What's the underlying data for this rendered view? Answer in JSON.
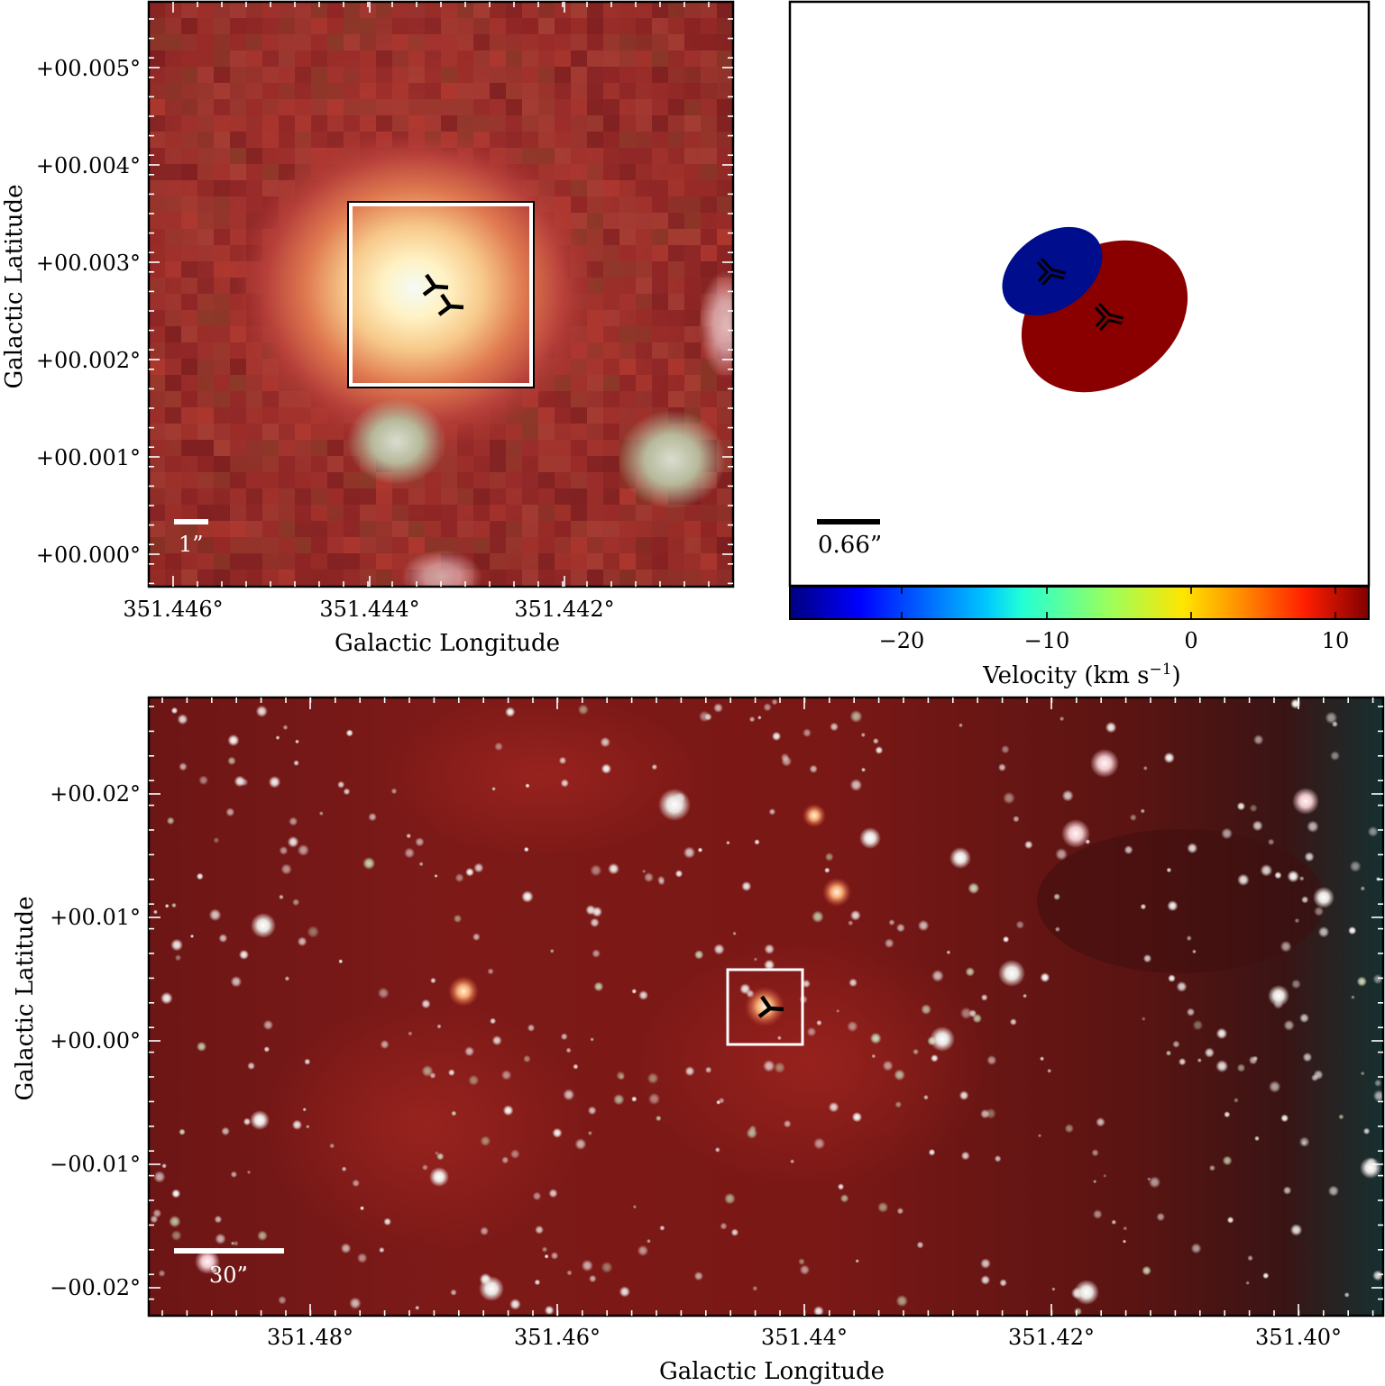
{
  "top_left_panel": {
    "y_axis_label": "Galactic Latitude",
    "x_axis_label": "Galactic Longitude",
    "y_ticks": [
      "+00.005°",
      "+00.004°",
      "+00.003°",
      "+00.002°",
      "+00.001°",
      "+00.000°"
    ],
    "x_ticks": [
      "351.446°",
      "351.444°",
      "351.442°"
    ],
    "scale_bar_label": "1”",
    "marker_icon": "three-arm-star-marker-icon"
  },
  "top_right_panel": {
    "scale_bar_label": "0.66”",
    "colorbar_ticks": [
      "−20",
      "−10",
      "0",
      "10"
    ],
    "colorbar_label": "Velocity (km s",
    "colorbar_label_exponent": "−1",
    "colorbar_label_close": ")",
    "components": [
      {
        "name": "blue",
        "color": "#000d8c"
      },
      {
        "name": "red",
        "color": "#8a0000"
      }
    ],
    "colormap": [
      "#00007f",
      "#0000ff",
      "#007fff",
      "#00ffff",
      "#7fff7f",
      "#ffff00",
      "#ff7f00",
      "#ff0000",
      "#7f0000"
    ]
  },
  "bottom_panel": {
    "y_axis_label": "Galactic Latitude",
    "x_axis_label": "Galactic Longitude",
    "y_ticks": [
      "+00.02°",
      "+00.01°",
      "+00.00°",
      "−00.01°",
      "−00.02°"
    ],
    "x_ticks": [
      "351.48°",
      "351.46°",
      "351.44°",
      "351.42°",
      "351.40°"
    ],
    "scale_bar_label": "30”",
    "marker_icon": "three-arm-star-marker-icon"
  }
}
